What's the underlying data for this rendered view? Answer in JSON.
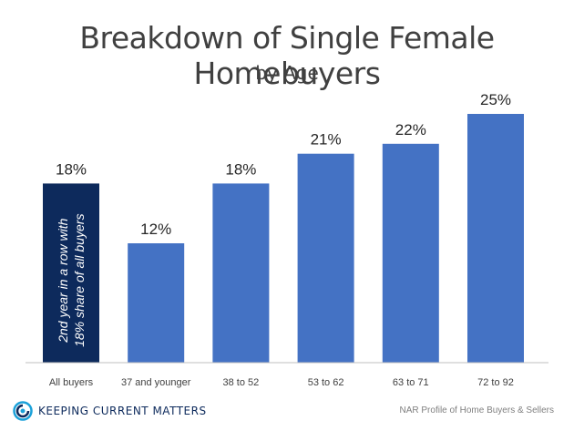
{
  "chart_data": {
    "type": "bar",
    "title": "Breakdown of Single Female Homebuyers",
    "subtitle": "by Age",
    "categories": [
      "All buyers",
      "37 and younger",
      "38 to 52",
      "53 to 62",
      "63 to 71",
      "72 to 92"
    ],
    "values": [
      18,
      12,
      18,
      21,
      22,
      25
    ],
    "data_labels": [
      "18%",
      "12%",
      "18%",
      "21%",
      "22%",
      "25%"
    ],
    "highlight_index": 0,
    "annotation": "2nd year in a row with 18% share of all buyers",
    "annotation_lines": [
      "2nd year in a row with",
      "18% share of all buyers"
    ],
    "ylim": [
      0,
      25
    ],
    "grid": false,
    "legend": "none",
    "colors": {
      "highlight": "#0d2a5c",
      "bar": "#4472c4",
      "text": "#404040",
      "axis": "#bfbfbf"
    }
  },
  "footer": {
    "brand": "Keeping Current Matters",
    "brand_display": "KEEPING CURRENT MATTERS",
    "source": "NAR Profile of Home Buyers & Sellers"
  },
  "icons": {
    "logo": "kcm-swirl-logo-icon"
  }
}
